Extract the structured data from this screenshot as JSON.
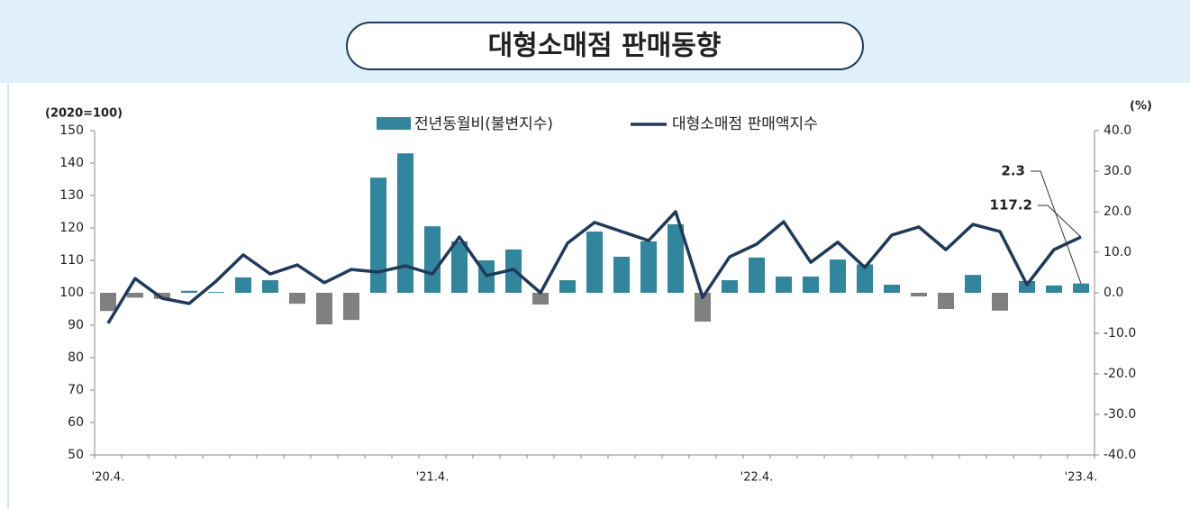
{
  "chart_data": {
    "type": "bar_line",
    "title": "대형소매점 판매동향",
    "y_label": "(2020=100)",
    "y2_label": "(%)",
    "categories": [
      "'20.4.",
      null,
      null,
      null,
      null,
      null,
      null,
      null,
      null,
      null,
      null,
      null,
      "'21.4.",
      null,
      null,
      null,
      null,
      null,
      null,
      null,
      null,
      null,
      null,
      null,
      "'22.4.",
      null,
      null,
      null,
      null,
      null,
      null,
      null,
      null,
      null,
      null,
      null,
      "'23.4."
    ],
    "series": [
      {
        "name": "전년동월비(불변지수)",
        "type": "bar",
        "axis": "y2",
        "color": "#31859c",
        "negative_color": "#808080",
        "values": [
          -4.5,
          -1.2,
          -1.5,
          0.5,
          0.2,
          3.8,
          3.1,
          -2.7,
          -7.8,
          -6.7,
          28.4,
          34.4,
          16.4,
          12.7,
          8.0,
          10.7,
          -2.9,
          3.1,
          15.1,
          8.9,
          12.7,
          16.9,
          -7.1,
          3.1,
          8.7,
          4.0,
          4.0,
          8.2,
          7.0,
          2.0,
          -0.9,
          -4.0,
          4.4,
          -4.4,
          2.9,
          1.8,
          2.3
        ]
      },
      {
        "name": "대형소매점 판매액지수",
        "type": "line",
        "axis": "y",
        "color": "#1f3a5a",
        "values": [
          90.6,
          104.4,
          98.3,
          96.7,
          103.6,
          111.7,
          105.8,
          108.6,
          103.1,
          107.2,
          106.4,
          108.3,
          105.8,
          117.2,
          105.3,
          107.2,
          100,
          115.3,
          121.7,
          118.9,
          116.1,
          125,
          98.6,
          111.1,
          115,
          121.9,
          109.4,
          115.6,
          107.8,
          117.8,
          120.3,
          113.3,
          121.1,
          118.9,
          102.5,
          113.3,
          117.2
        ]
      }
    ],
    "ylim": [
      50,
      150
    ],
    "yticks": [
      50,
      60,
      70,
      80,
      90,
      100,
      110,
      120,
      130,
      140,
      150
    ],
    "y2lim": [
      -40,
      40
    ],
    "y2ticks": [
      {
        "value": -40,
        "label": "-40.0"
      },
      {
        "value": -30,
        "label": "-30.0"
      },
      {
        "value": -20,
        "label": "-20.0"
      },
      {
        "value": -10,
        "label": "-10.0"
      },
      {
        "value": 0,
        "label": "0.0"
      },
      {
        "value": 10,
        "label": "10.0"
      },
      {
        "value": 20,
        "label": "20.0"
      },
      {
        "value": 30,
        "label": "30.0"
      },
      {
        "value": 40,
        "label": "40.0"
      }
    ],
    "legend": "top"
  }
}
